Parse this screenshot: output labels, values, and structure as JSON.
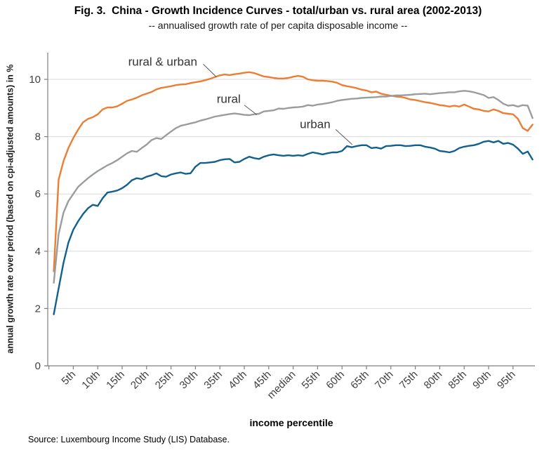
{
  "source_note": "Source: Luxembourg Income Study (LIS) Database.",
  "chart_data": {
    "type": "line",
    "title": "Fig. 3.  China - Growth Incidence Curves - total/urban vs. rural area (2002-2013)",
    "subtitle": "-- annualised growth rate of per capita disposable income --",
    "xlabel": "income percentile",
    "ylabel": "annual growth rate over period (based on cpi-adjusted amounts) in %",
    "ylim": [
      0,
      10.9
    ],
    "yticks": [
      0,
      2,
      4,
      6,
      8,
      10
    ],
    "grid": "horizontal",
    "legend_position": "inline-annotations",
    "axis_color": "#7F7F7F",
    "grid_color": "#D9D9D9",
    "tick_label_color": "#404040",
    "annotation_color": "#333333",
    "leader_color": "#595959",
    "xticks": [
      {
        "p": 0,
        "label": ""
      },
      {
        "p": 5,
        "label": "5th"
      },
      {
        "p": 10,
        "label": "10th"
      },
      {
        "p": 15,
        "label": "15th"
      },
      {
        "p": 20,
        "label": "20th"
      },
      {
        "p": 25,
        "label": "25th"
      },
      {
        "p": 30,
        "label": "30th"
      },
      {
        "p": 35,
        "label": "35th"
      },
      {
        "p": 40,
        "label": "40th"
      },
      {
        "p": 45,
        "label": "45th"
      },
      {
        "p": 50,
        "label": "median"
      },
      {
        "p": 55,
        "label": "55th"
      },
      {
        "p": 60,
        "label": "60th"
      },
      {
        "p": 65,
        "label": "65th"
      },
      {
        "p": 70,
        "label": "70th"
      },
      {
        "p": 75,
        "label": "75th"
      },
      {
        "p": 80,
        "label": "80th"
      },
      {
        "p": 85,
        "label": "85th"
      },
      {
        "p": 90,
        "label": "90th"
      },
      {
        "p": 95,
        "label": "95th"
      }
    ],
    "x_percentiles": "1..99",
    "series": [
      {
        "name": "rural & urban",
        "color": "#ED7D31",
        "values": [
          3.3,
          6.5,
          7.15,
          7.6,
          7.95,
          8.25,
          8.5,
          8.62,
          8.68,
          8.78,
          8.95,
          9.02,
          9.02,
          9.06,
          9.15,
          9.25,
          9.3,
          9.36,
          9.44,
          9.5,
          9.56,
          9.65,
          9.7,
          9.73,
          9.76,
          9.8,
          9.82,
          9.83,
          9.87,
          9.9,
          9.93,
          9.97,
          10.02,
          10.08,
          10.14,
          10.17,
          10.15,
          10.18,
          10.2,
          10.23,
          10.25,
          10.22,
          10.16,
          10.1,
          10.08,
          10.05,
          10.03,
          10.03,
          10.05,
          10.09,
          10.12,
          10.09,
          10.0,
          9.97,
          9.95,
          9.95,
          9.94,
          9.92,
          9.88,
          9.8,
          9.76,
          9.73,
          9.69,
          9.64,
          9.61,
          9.55,
          9.57,
          9.5,
          9.46,
          9.43,
          9.4,
          9.39,
          9.35,
          9.3,
          9.28,
          9.24,
          9.2,
          9.18,
          9.14,
          9.1,
          9.08,
          9.05,
          9.08,
          9.05,
          9.12,
          9.05,
          8.97,
          8.95,
          8.9,
          8.88,
          8.95,
          8.9,
          8.82,
          8.8,
          8.78,
          8.62,
          8.3,
          8.2,
          8.42
        ]
      },
      {
        "name": "rural",
        "color": "#9A9D9E",
        "values": [
          2.9,
          4.6,
          5.35,
          5.75,
          6.0,
          6.25,
          6.4,
          6.55,
          6.68,
          6.8,
          6.9,
          7.0,
          7.08,
          7.18,
          7.3,
          7.42,
          7.5,
          7.47,
          7.6,
          7.72,
          7.88,
          7.95,
          7.92,
          8.05,
          8.18,
          8.3,
          8.38,
          8.42,
          8.46,
          8.5,
          8.56,
          8.6,
          8.65,
          8.7,
          8.73,
          8.76,
          8.79,
          8.81,
          8.79,
          8.76,
          8.75,
          8.78,
          8.8,
          8.88,
          8.9,
          8.92,
          8.98,
          8.97,
          9.0,
          9.02,
          9.03,
          9.05,
          9.1,
          9.08,
          9.12,
          9.14,
          9.17,
          9.2,
          9.25,
          9.28,
          9.3,
          9.32,
          9.33,
          9.35,
          9.36,
          9.37,
          9.38,
          9.4,
          9.4,
          9.42,
          9.44,
          9.44,
          9.45,
          9.46,
          9.48,
          9.49,
          9.5,
          9.48,
          9.5,
          9.52,
          9.53,
          9.55,
          9.55,
          9.58,
          9.6,
          9.58,
          9.55,
          9.5,
          9.45,
          9.35,
          9.38,
          9.28,
          9.15,
          9.08,
          9.1,
          9.05,
          9.1,
          9.08,
          8.65
        ]
      },
      {
        "name": "urban",
        "color": "#11618C",
        "values": [
          1.8,
          2.7,
          3.6,
          4.3,
          4.75,
          5.05,
          5.3,
          5.5,
          5.62,
          5.58,
          5.85,
          6.05,
          6.08,
          6.12,
          6.2,
          6.32,
          6.48,
          6.55,
          6.52,
          6.6,
          6.65,
          6.72,
          6.62,
          6.6,
          6.68,
          6.72,
          6.75,
          6.7,
          6.72,
          6.95,
          7.08,
          7.08,
          7.1,
          7.12,
          7.18,
          7.21,
          7.22,
          7.1,
          7.12,
          7.22,
          7.3,
          7.25,
          7.22,
          7.3,
          7.35,
          7.38,
          7.35,
          7.33,
          7.35,
          7.33,
          7.35,
          7.33,
          7.4,
          7.45,
          7.42,
          7.38,
          7.42,
          7.45,
          7.45,
          7.5,
          7.67,
          7.63,
          7.67,
          7.7,
          7.7,
          7.6,
          7.62,
          7.58,
          7.67,
          7.68,
          7.7,
          7.7,
          7.67,
          7.68,
          7.7,
          7.7,
          7.65,
          7.62,
          7.58,
          7.5,
          7.48,
          7.45,
          7.5,
          7.6,
          7.65,
          7.68,
          7.7,
          7.75,
          7.82,
          7.85,
          7.8,
          7.85,
          7.75,
          7.78,
          7.72,
          7.58,
          7.4,
          7.48,
          7.2
        ]
      }
    ],
    "annotations": [
      {
        "text": "rural & urban",
        "label_p": 23.3,
        "label_v": 10.62,
        "leader": [
          [
            31.6,
            10.53
          ],
          [
            34.3,
            10.08
          ]
        ]
      },
      {
        "text": "rural",
        "label_p": 36.8,
        "label_v": 9.32,
        "leader": [
          [
            40.0,
            9.1
          ],
          [
            42.6,
            8.76
          ]
        ]
      },
      {
        "text": "urban",
        "label_p": 54.5,
        "label_v": 8.44,
        "leader": [
          [
            58.7,
            8.25
          ],
          [
            62.1,
            7.72
          ]
        ]
      }
    ]
  }
}
